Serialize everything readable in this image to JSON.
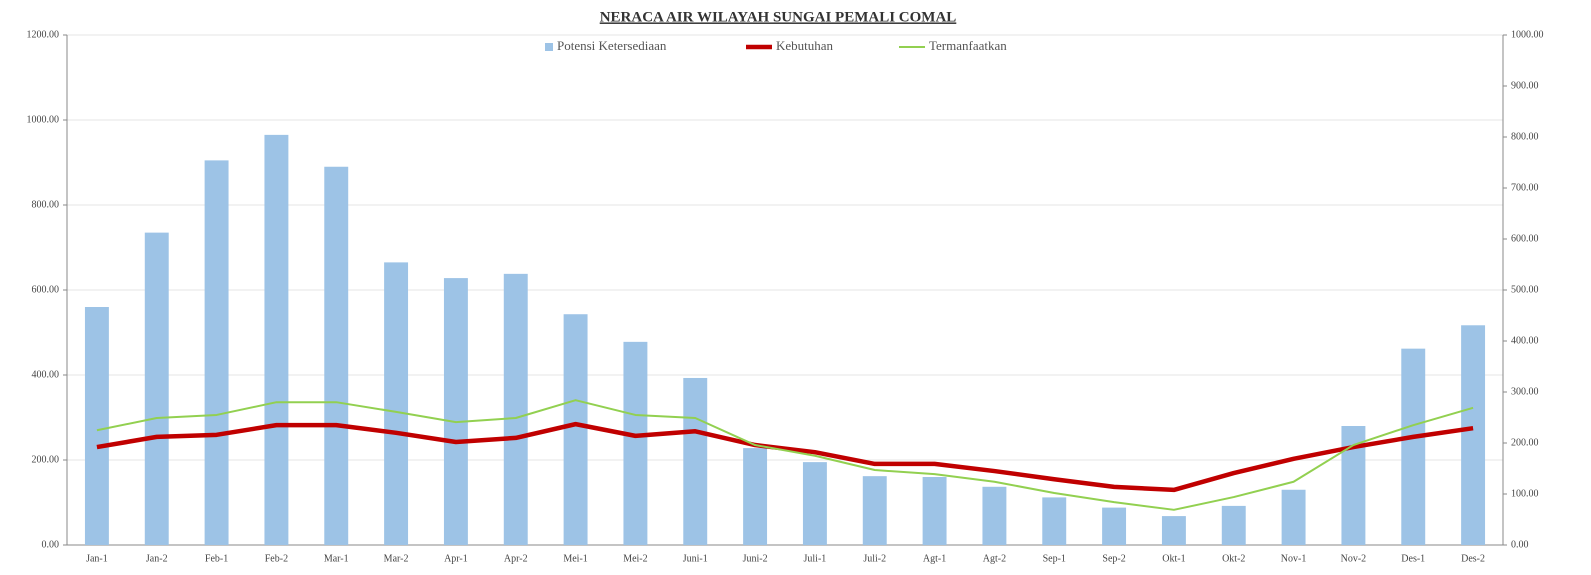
{
  "chart_data": {
    "type": "bar_line",
    "title": "NERACA AIR WILAYAH SUNGAI PEMALI COMAL",
    "categories": [
      "Jan-1",
      "Jan-2",
      "Feb-1",
      "Feb-2",
      "Mar-1",
      "Mar-2",
      "Apr-1",
      "Apr-2",
      "Mei-1",
      "Mei-2",
      "Juni-1",
      "Juni-2",
      "Juli-1",
      "Juli-2",
      "Agt-1",
      "Agt-2",
      "Sep-1",
      "Sep-2",
      "Okt-1",
      "Okt-2",
      "Nov-1",
      "Nov-2",
      "Des-1",
      "Des-2"
    ],
    "series": [
      {
        "name": "Potensi Ketersediaan",
        "type": "bar",
        "color": "#9dc3e6",
        "axis": "y",
        "values": [
          560,
          735,
          905,
          965,
          890,
          665,
          628,
          638,
          543,
          478,
          393,
          228,
          195,
          162,
          160,
          137,
          112,
          88,
          68,
          92,
          130,
          280,
          462,
          517
        ]
      },
      {
        "name": "Kebutuhan",
        "type": "line",
        "color": "#c00000",
        "axis": "y2",
        "values": [
          192,
          212,
          216,
          235,
          235,
          220,
          202,
          210,
          237,
          214,
          223,
          196,
          182,
          159,
          159,
          145,
          129,
          114,
          108,
          141,
          169,
          192,
          212,
          229
        ]
      },
      {
        "name": "Termanfaatkan",
        "type": "line",
        "color": "#92d050",
        "axis": "y2",
        "values": [
          225,
          249,
          255,
          280,
          280,
          261,
          241,
          249,
          284,
          255,
          249,
          196,
          175,
          147,
          139,
          124,
          102,
          84,
          69,
          94,
          124,
          196,
          235,
          269
        ]
      }
    ],
    "ylim": [
      0,
      1200
    ],
    "yticks": [
      {
        "value": 0,
        "label": "0.00"
      },
      {
        "value": 200,
        "label": "200.00"
      },
      {
        "value": 400,
        "label": "400.00"
      },
      {
        "value": 600,
        "label": "600.00"
      },
      {
        "value": 800,
        "label": "800.00"
      },
      {
        "value": 1000,
        "label": "1000.00"
      },
      {
        "value": 1200,
        "label": "1200.00"
      }
    ],
    "y2lim": [
      0,
      1000
    ],
    "y2ticks": [
      {
        "value": 0,
        "label": "0.00"
      },
      {
        "value": 100,
        "label": "100.00"
      },
      {
        "value": 200,
        "label": "200.00"
      },
      {
        "value": 300,
        "label": "300.00"
      },
      {
        "value": 400,
        "label": "400.00"
      },
      {
        "value": 500,
        "label": "500.00"
      },
      {
        "value": 600,
        "label": "600.00"
      },
      {
        "value": 700,
        "label": "700.00"
      },
      {
        "value": 800,
        "label": "800.00"
      },
      {
        "value": 900,
        "label": "900.00"
      },
      {
        "value": 1000,
        "label": "1000.00"
      }
    ],
    "grid": true,
    "legend": "top"
  }
}
